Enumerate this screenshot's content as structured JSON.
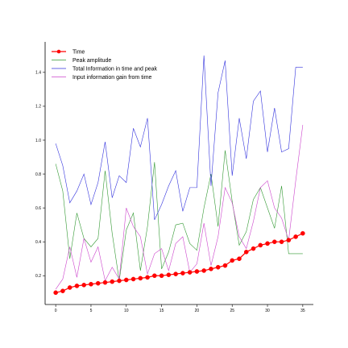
{
  "chart_data": {
    "type": "line",
    "title": "",
    "xlabel": "",
    "ylabel": "",
    "xlim": [
      -1.5,
      36.5
    ],
    "ylim": [
      0.03,
      1.58
    ],
    "x_ticks": [
      0,
      5,
      10,
      15,
      20,
      25,
      30,
      35
    ],
    "y_ticks": [
      0.2,
      0.4,
      0.6,
      0.8,
      1.0,
      1.2,
      1.4
    ],
    "x_tick_labels": [
      "0",
      "5",
      "10",
      "15",
      "20",
      "25",
      "30",
      "35"
    ],
    "y_tick_labels": [
      "0.2",
      "0.4",
      "0.6",
      "0.8",
      "1.0",
      "1.2",
      "1.4"
    ],
    "grid": false,
    "legend_position": "top-left",
    "x": [
      0,
      1,
      2,
      3,
      4,
      5,
      6,
      7,
      8,
      9,
      10,
      11,
      12,
      13,
      14,
      15,
      16,
      17,
      18,
      19,
      20,
      21,
      22,
      23,
      24,
      25,
      26,
      27,
      28,
      29,
      30,
      31,
      32,
      33,
      34,
      35
    ],
    "series": [
      {
        "name": "Time",
        "color": "#ff0000",
        "marker": true,
        "values": [
          0.1,
          0.11,
          0.13,
          0.14,
          0.145,
          0.15,
          0.155,
          0.16,
          0.165,
          0.17,
          0.175,
          0.18,
          0.185,
          0.19,
          0.2,
          0.2,
          0.205,
          0.21,
          0.215,
          0.22,
          0.225,
          0.23,
          0.24,
          0.25,
          0.26,
          0.29,
          0.3,
          0.34,
          0.36,
          0.38,
          0.39,
          0.4,
          0.4,
          0.41,
          0.43,
          0.45
        ]
      },
      {
        "name": "Peak amplitude",
        "color": "#339933",
        "marker": false,
        "values": [
          0.86,
          0.7,
          0.3,
          0.57,
          0.42,
          0.37,
          0.42,
          0.82,
          0.45,
          0.17,
          0.47,
          0.57,
          0.23,
          0.49,
          0.87,
          0.24,
          0.34,
          0.5,
          0.51,
          0.39,
          0.35,
          0.6,
          0.8,
          0.49,
          0.94,
          0.64,
          0.38,
          0.46,
          0.65,
          0.72,
          0.6,
          0.48,
          0.73,
          0.33,
          0.33,
          0.33
        ]
      },
      {
        "name": "Total Information in time and peak",
        "color": "#3333dd",
        "marker": false,
        "values": [
          0.98,
          0.85,
          0.63,
          0.7,
          0.8,
          0.62,
          0.75,
          0.99,
          0.66,
          0.79,
          0.75,
          1.07,
          0.96,
          1.13,
          0.53,
          0.62,
          0.73,
          0.82,
          0.58,
          0.72,
          0.72,
          1.5,
          0.73,
          1.28,
          1.47,
          0.79,
          1.13,
          0.89,
          1.23,
          1.29,
          0.93,
          1.19,
          0.93,
          0.95,
          1.43,
          1.43
        ]
      },
      {
        "name": "Input information gain from time",
        "color": "#cc44cc",
        "marker": false,
        "values": [
          0.12,
          0.18,
          0.37,
          0.19,
          0.42,
          0.28,
          0.37,
          0.17,
          0.25,
          0.18,
          0.6,
          0.49,
          0.43,
          0.21,
          0.33,
          0.36,
          0.23,
          0.39,
          0.43,
          0.22,
          0.27,
          0.51,
          0.26,
          0.43,
          0.72,
          0.63,
          0.43,
          0.36,
          0.52,
          0.72,
          0.76,
          0.6,
          0.54,
          0.41,
          0.76,
          1.09
        ]
      }
    ]
  }
}
